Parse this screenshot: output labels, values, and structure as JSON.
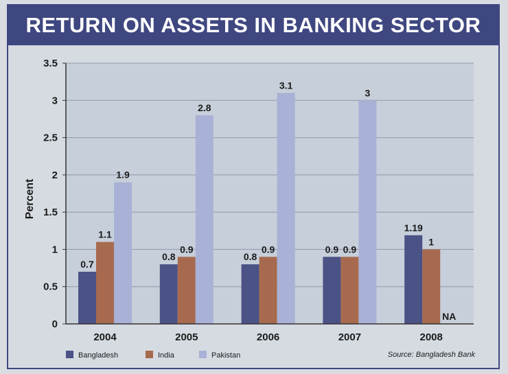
{
  "chart_data": {
    "type": "bar",
    "title": "RETURN ON ASSETS IN BANKING SECTOR",
    "ylabel": "Percent",
    "xlabel": "",
    "ylim": [
      0,
      3.5
    ],
    "yticks": [
      "0",
      "0.5",
      "1",
      "1.5",
      "2",
      "2.5",
      "3",
      "3.5"
    ],
    "ytick_values": [
      0,
      0.5,
      1,
      1.5,
      2,
      2.5,
      3,
      3.5
    ],
    "grid": true,
    "legend_position": "bottom-left",
    "categories": [
      "2004",
      "2005",
      "2006",
      "2007",
      "2008"
    ],
    "series": [
      {
        "name": "Bangladesh",
        "color": "#4b5286",
        "values": [
          0.7,
          0.8,
          0.8,
          0.9,
          1.19
        ],
        "labels": [
          "0.7",
          "0.8",
          "0.8",
          "0.9",
          "1.19"
        ]
      },
      {
        "name": "India",
        "color": "#a86a4e",
        "values": [
          1.1,
          0.9,
          0.9,
          0.9,
          1
        ],
        "labels": [
          "1.1",
          "0.9",
          "0.9",
          "0.9",
          "1"
        ]
      },
      {
        "name": "Pakistan",
        "color": "#a9b1d6",
        "values": [
          1.9,
          2.8,
          3.1,
          3,
          null
        ],
        "labels": [
          "1.9",
          "2.8",
          "3.1",
          "3",
          "NA"
        ]
      }
    ],
    "source": "Source: Bangladesh Bank"
  }
}
